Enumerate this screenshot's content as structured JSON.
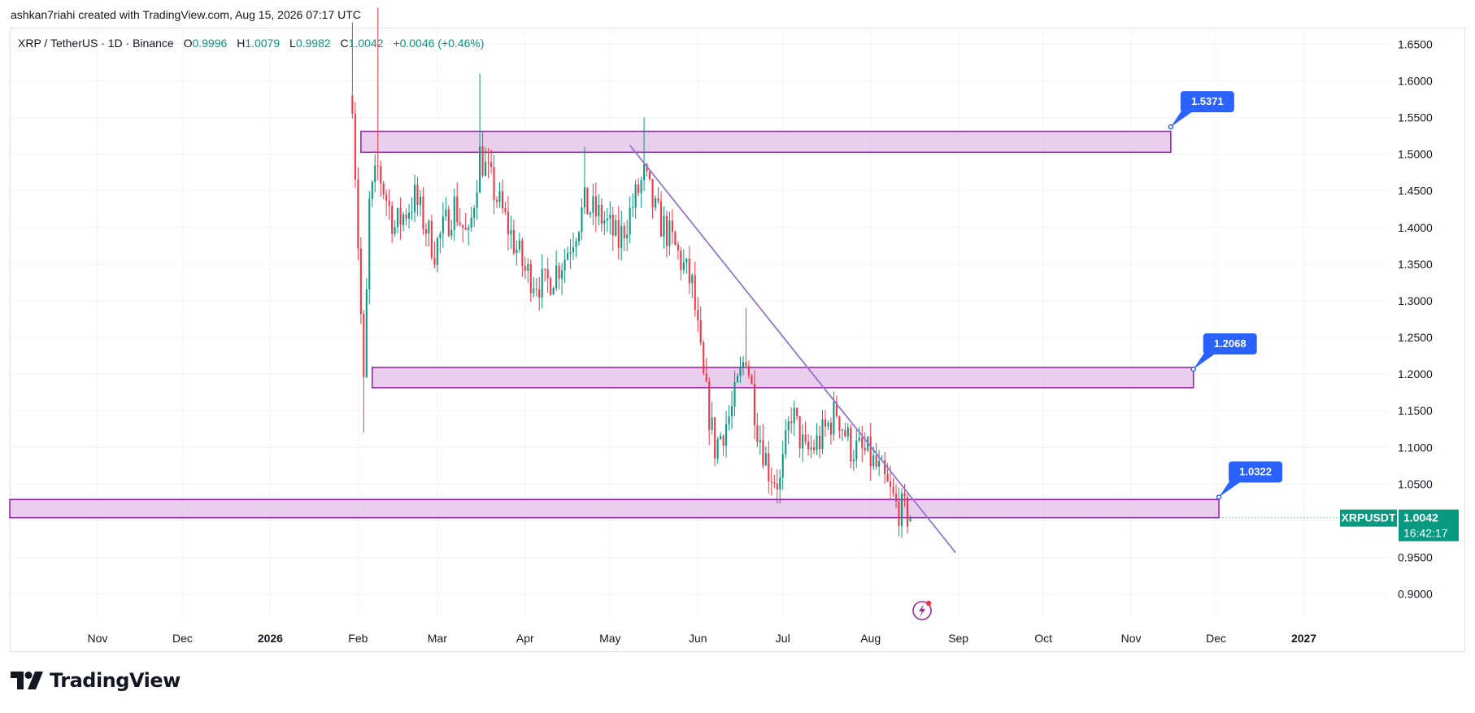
{
  "header": {
    "caption": "ashkan7riahi created with TradingView.com, Aug 15, 2026 07:17 UTC"
  },
  "legend": {
    "symbol": "XRP / TetherUS · 1D · Binance",
    "o_label": "O",
    "o_value": "0.9996",
    "h_label": "H",
    "h_value": "1.0079",
    "l_label": "L",
    "l_value": "0.9982",
    "c_label": "C",
    "c_value": "1.0042",
    "change": "+0.0046 (+0.46%)"
  },
  "price_badge": {
    "ticker": "XRPUSDT",
    "price": "1.0042",
    "countdown": "16:42:17"
  },
  "brand": {
    "name": "TradingView"
  },
  "colors": {
    "up": "#089981",
    "down": "#f23645",
    "zone_fill": "#e1bee7",
    "zone_stroke": "#9c27b0",
    "trendline": "#9575cd",
    "callout": "#2962ff",
    "grid": "#f0f3fa"
  },
  "chart_data": {
    "type": "candlestick",
    "title": "XRP / TetherUS · 1D · Binance",
    "x_axis": {
      "type": "date",
      "start": "2025-10-01",
      "end": "2027-01-31",
      "ticks": [
        {
          "date": "2025-11-01",
          "label": "Nov",
          "bold": false
        },
        {
          "date": "2025-12-01",
          "label": "Dec",
          "bold": false
        },
        {
          "date": "2026-01-01",
          "label": "2026",
          "bold": true
        },
        {
          "date": "2026-02-01",
          "label": "Feb",
          "bold": false
        },
        {
          "date": "2026-03-01",
          "label": "Mar",
          "bold": false
        },
        {
          "date": "2026-04-01",
          "label": "Apr",
          "bold": false
        },
        {
          "date": "2026-05-01",
          "label": "May",
          "bold": false
        },
        {
          "date": "2026-06-01",
          "label": "Jun",
          "bold": false
        },
        {
          "date": "2026-07-01",
          "label": "Jul",
          "bold": false
        },
        {
          "date": "2026-08-01",
          "label": "Aug",
          "bold": false
        },
        {
          "date": "2026-09-01",
          "label": "Sep",
          "bold": false
        },
        {
          "date": "2026-10-01",
          "label": "Oct",
          "bold": false
        },
        {
          "date": "2026-11-01",
          "label": "Nov",
          "bold": false
        },
        {
          "date": "2026-12-01",
          "label": "Dec",
          "bold": false
        },
        {
          "date": "2027-01-01",
          "label": "2027",
          "bold": true
        }
      ]
    },
    "y_axis": {
      "position": "right",
      "range": [
        0.8675,
        1.6725
      ],
      "ticks": [
        "1.6500",
        "1.6000",
        "1.5500",
        "1.5000",
        "1.4500",
        "1.4000",
        "1.3500",
        "1.3000",
        "1.2500",
        "1.2000",
        "1.1500",
        "1.1000",
        "1.0500",
        "1.0000",
        "0.9500",
        "0.9000"
      ]
    },
    "grid": true,
    "anchors": [
      {
        "date": "2026-01-30",
        "close": 1.58
      },
      {
        "date": "2026-02-03",
        "close": 1.18
      },
      {
        "date": "2026-02-05",
        "close": 1.43
      },
      {
        "date": "2026-02-08",
        "close": 1.48
      },
      {
        "date": "2026-02-14",
        "close": 1.4
      },
      {
        "date": "2026-02-21",
        "close": 1.44
      },
      {
        "date": "2026-02-28",
        "close": 1.37
      },
      {
        "date": "2026-03-07",
        "close": 1.43
      },
      {
        "date": "2026-03-12",
        "close": 1.38
      },
      {
        "date": "2026-03-16",
        "close": 1.5
      },
      {
        "date": "2026-03-20",
        "close": 1.46
      },
      {
        "date": "2026-03-27",
        "close": 1.39
      },
      {
        "date": "2026-04-01",
        "close": 1.34
      },
      {
        "date": "2026-04-08",
        "close": 1.32
      },
      {
        "date": "2026-04-15",
        "close": 1.36
      },
      {
        "date": "2026-04-22",
        "close": 1.43
      },
      {
        "date": "2026-04-29",
        "close": 1.41
      },
      {
        "date": "2026-05-04",
        "close": 1.38
      },
      {
        "date": "2026-05-10",
        "close": 1.44
      },
      {
        "date": "2026-05-13",
        "close": 1.47
      },
      {
        "date": "2026-05-17",
        "close": 1.42
      },
      {
        "date": "2026-05-23",
        "close": 1.38
      },
      {
        "date": "2026-05-30",
        "close": 1.32
      },
      {
        "date": "2026-06-03",
        "close": 1.19
      },
      {
        "date": "2026-06-07",
        "close": 1.1
      },
      {
        "date": "2026-06-13",
        "close": 1.15
      },
      {
        "date": "2026-06-18",
        "close": 1.23
      },
      {
        "date": "2026-06-22",
        "close": 1.13
      },
      {
        "date": "2026-06-26",
        "close": 1.07
      },
      {
        "date": "2026-06-30",
        "close": 1.05
      },
      {
        "date": "2026-07-04",
        "close": 1.15
      },
      {
        "date": "2026-07-09",
        "close": 1.09
      },
      {
        "date": "2026-07-14",
        "close": 1.11
      },
      {
        "date": "2026-07-20",
        "close": 1.15
      },
      {
        "date": "2026-07-25",
        "close": 1.1
      },
      {
        "date": "2026-07-31",
        "close": 1.09
      },
      {
        "date": "2026-08-05",
        "close": 1.06
      },
      {
        "date": "2026-08-10",
        "close": 1.02
      },
      {
        "date": "2026-08-15",
        "close": 1.0042
      }
    ],
    "last_candle": {
      "date": "2026-08-15",
      "open": 0.9996,
      "high": 1.0079,
      "low": 0.9982,
      "close": 1.0042
    },
    "zones": [
      {
        "name": "upper-zone",
        "start": "2026-02-02",
        "end": "2026-11-15",
        "low": 1.5025,
        "high": 1.5311
      },
      {
        "name": "middle-zone",
        "start": "2026-02-06",
        "end": "2026-11-23",
        "low": 1.1815,
        "high": 1.2091
      },
      {
        "name": "lower-zone",
        "start": "2025-10-01",
        "end": "2026-12-02",
        "low": 1.0042,
        "high": 1.029
      }
    ],
    "trendline": {
      "start": {
        "date": "2026-05-08",
        "price": 1.512
      },
      "end": {
        "date": "2026-08-31",
        "price": 0.9565
      }
    },
    "callouts": [
      {
        "label": "1.5371",
        "anchor_date": "2026-11-15",
        "anchor_price": 1.5371
      },
      {
        "label": "1.2068",
        "anchor_date": "2026-11-23",
        "anchor_price": 1.2068
      },
      {
        "label": "1.0322",
        "anchor_date": "2026-12-02",
        "anchor_price": 1.0322
      }
    ]
  }
}
